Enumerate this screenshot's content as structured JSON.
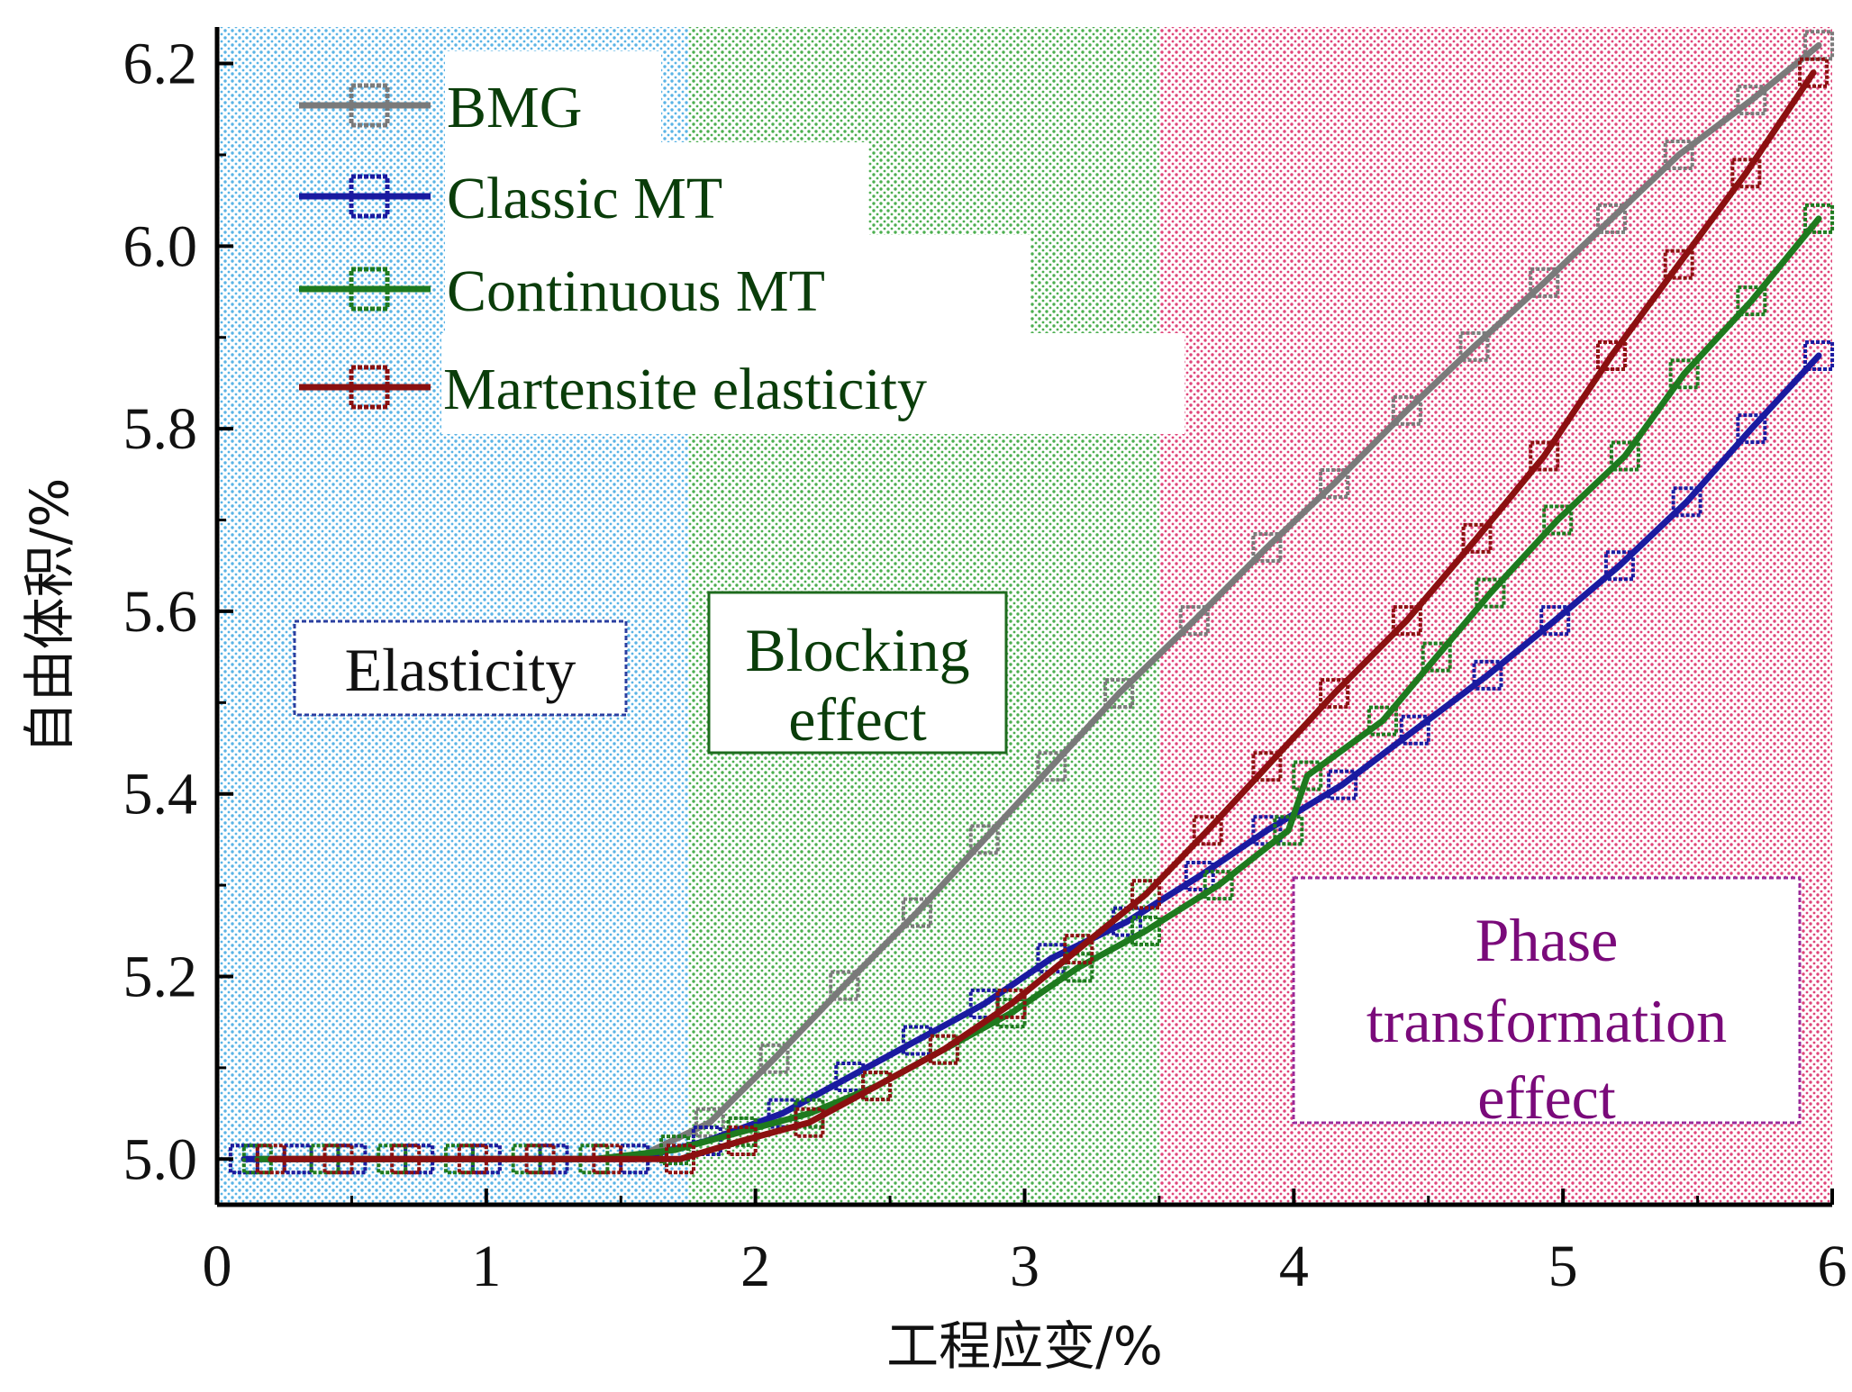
{
  "chart_data": {
    "type": "line",
    "title": "",
    "xlabel": "工程应变/%",
    "ylabel": "自由体积/%",
    "xlim": [
      0,
      6
    ],
    "ylim": [
      4.95,
      6.24
    ],
    "xticks": [
      0,
      1,
      2,
      3,
      4,
      5,
      6
    ],
    "yticks": [
      5.0,
      5.2,
      5.4,
      5.6,
      5.8,
      6.0,
      6.2
    ],
    "ytick_labels": [
      "5.0",
      "5.2",
      "5.4",
      "5.6",
      "5.8",
      "6.0",
      "6.2"
    ],
    "xtick_labels": [
      "0",
      "1",
      "2",
      "3",
      "4",
      "5",
      "6"
    ],
    "grid": false,
    "legend_position": "top-left",
    "marker": "open-square",
    "regions": [
      {
        "label": "Elasticity",
        "x_range": [
          0,
          1.75
        ],
        "color": "#5ab4e6",
        "label_color": "#111111",
        "border_color": "#2b3fa0"
      },
      {
        "label": "Blocking effect",
        "x_range": [
          1.75,
          3.5
        ],
        "color": "#4caf50",
        "label_color": "#0a3d0a",
        "border_color": "#1e6b1e"
      },
      {
        "label": "Phase transformation effect",
        "x_range": [
          3.5,
          6
        ],
        "color": "#e0457a",
        "label_color": "#7a0a7a",
        "border_color": "#9a2a9a"
      }
    ],
    "series": [
      {
        "name": "BMG",
        "color": "#7a7a7a",
        "x": [
          0.1,
          0.3,
          0.5,
          0.75,
          1.0,
          1.25,
          1.55,
          1.83,
          2.07,
          2.33,
          2.6,
          2.85,
          3.1,
          3.35,
          3.63,
          3.9,
          4.15,
          4.42,
          4.67,
          4.93,
          5.18,
          5.43,
          5.7,
          5.95
        ],
        "y": [
          5.0,
          5.0,
          5.0,
          5.0,
          5.0,
          5.0,
          5.0,
          5.04,
          5.11,
          5.19,
          5.27,
          5.35,
          5.43,
          5.51,
          5.59,
          5.67,
          5.74,
          5.82,
          5.89,
          5.96,
          6.03,
          6.1,
          6.16,
          6.22
        ]
      },
      {
        "name": "Classic MT",
        "color": "#1a1aa0",
        "x": [
          0.1,
          0.3,
          0.5,
          0.75,
          1.0,
          1.25,
          1.55,
          1.82,
          2.1,
          2.35,
          2.6,
          2.85,
          3.1,
          3.38,
          3.65,
          3.9,
          4.18,
          4.45,
          4.72,
          4.97,
          5.21,
          5.46,
          5.7,
          5.95
        ],
        "y": [
          5.0,
          5.0,
          5.0,
          5.0,
          5.0,
          5.0,
          5.0,
          5.02,
          5.05,
          5.09,
          5.13,
          5.17,
          5.22,
          5.26,
          5.31,
          5.36,
          5.41,
          5.47,
          5.53,
          5.59,
          5.65,
          5.72,
          5.8,
          5.88
        ]
      },
      {
        "name": "Continuous MT",
        "color": "#1e7a1e",
        "x": [
          0.15,
          0.4,
          0.65,
          0.9,
          1.15,
          1.4,
          1.7,
          1.95,
          2.2,
          2.45,
          2.7,
          2.95,
          3.2,
          3.45,
          3.72,
          3.98,
          4.05,
          4.33,
          4.53,
          4.73,
          4.98,
          5.23,
          5.45,
          5.7,
          5.95
        ],
        "y": [
          5.0,
          5.0,
          5.0,
          5.0,
          5.0,
          5.0,
          5.01,
          5.03,
          5.05,
          5.08,
          5.12,
          5.16,
          5.21,
          5.25,
          5.3,
          5.36,
          5.42,
          5.48,
          5.55,
          5.62,
          5.7,
          5.77,
          5.86,
          5.94,
          6.03
        ]
      },
      {
        "name": "Martensite elasticity",
        "color": "#8b1010",
        "x": [
          0.2,
          0.45,
          0.7,
          0.95,
          1.2,
          1.45,
          1.72,
          1.95,
          2.2,
          2.45,
          2.7,
          2.95,
          3.2,
          3.45,
          3.68,
          3.9,
          4.15,
          4.42,
          4.68,
          4.93,
          5.18,
          5.43,
          5.68,
          5.93
        ],
        "y": [
          5.0,
          5.0,
          5.0,
          5.0,
          5.0,
          5.0,
          5.0,
          5.02,
          5.04,
          5.08,
          5.12,
          5.17,
          5.23,
          5.29,
          5.36,
          5.43,
          5.51,
          5.59,
          5.68,
          5.77,
          5.88,
          5.98,
          6.08,
          6.19
        ]
      }
    ]
  }
}
